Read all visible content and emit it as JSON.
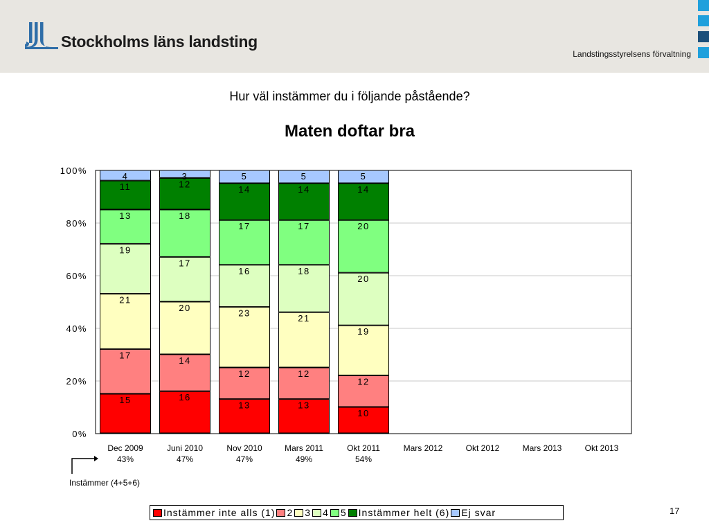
{
  "header": {
    "organization": "Stockholms läns landsting",
    "department": "Landstingsstyrelsens förvaltning",
    "colors": {
      "logo": "#2f6ea8",
      "corner_light": "#1fa0dc",
      "corner_dark": "#1c4f7a",
      "background": "#e8e6e1"
    }
  },
  "question": "Hur väl instämmer du i följande påstående?",
  "page_number": "17",
  "agree_label": "Instämmer (4+5+6)",
  "chart_data": {
    "type": "bar",
    "stacked": true,
    "percent": true,
    "title": "Maten doftar bra",
    "categories": [
      "Dec 2009",
      "Juni 2010",
      "Nov 2010",
      "Mars 2011",
      "Okt 2011",
      "Mars 2012",
      "Okt 2012",
      "Mars 2013",
      "Okt 2013"
    ],
    "agree_share": [
      "43%",
      "47%",
      "47%",
      "49%",
      "54%",
      "",
      "",
      "",
      ""
    ],
    "ylim": [
      0,
      100
    ],
    "yticks": [
      "0%",
      "20%",
      "40%",
      "60%",
      "80%",
      "100%"
    ],
    "grid": true,
    "legend_position": "bottom",
    "series": [
      {
        "name": "Instämmer inte alls (1)",
        "color": "#ff0000",
        "values": [
          15,
          16,
          13,
          13,
          10,
          null,
          null,
          null,
          null
        ]
      },
      {
        "name": "2",
        "color": "#ff8080",
        "values": [
          17,
          14,
          12,
          12,
          12,
          null,
          null,
          null,
          null
        ]
      },
      {
        "name": "3",
        "color": "#ffffc0",
        "values": [
          21,
          20,
          23,
          21,
          19,
          null,
          null,
          null,
          null
        ]
      },
      {
        "name": "4",
        "color": "#ddffc0",
        "values": [
          19,
          17,
          16,
          18,
          20,
          null,
          null,
          null,
          null
        ]
      },
      {
        "name": "5",
        "color": "#80ff80",
        "values": [
          13,
          18,
          17,
          17,
          20,
          null,
          null,
          null,
          null
        ]
      },
      {
        "name": "Instämmer helt (6)",
        "color": "#008000",
        "values": [
          11,
          12,
          14,
          14,
          14,
          null,
          null,
          null,
          null
        ]
      },
      {
        "name": "Ej svar",
        "color": "#a6c8ff",
        "values": [
          4,
          3,
          5,
          5,
          5,
          null,
          null,
          null,
          null
        ]
      }
    ]
  }
}
